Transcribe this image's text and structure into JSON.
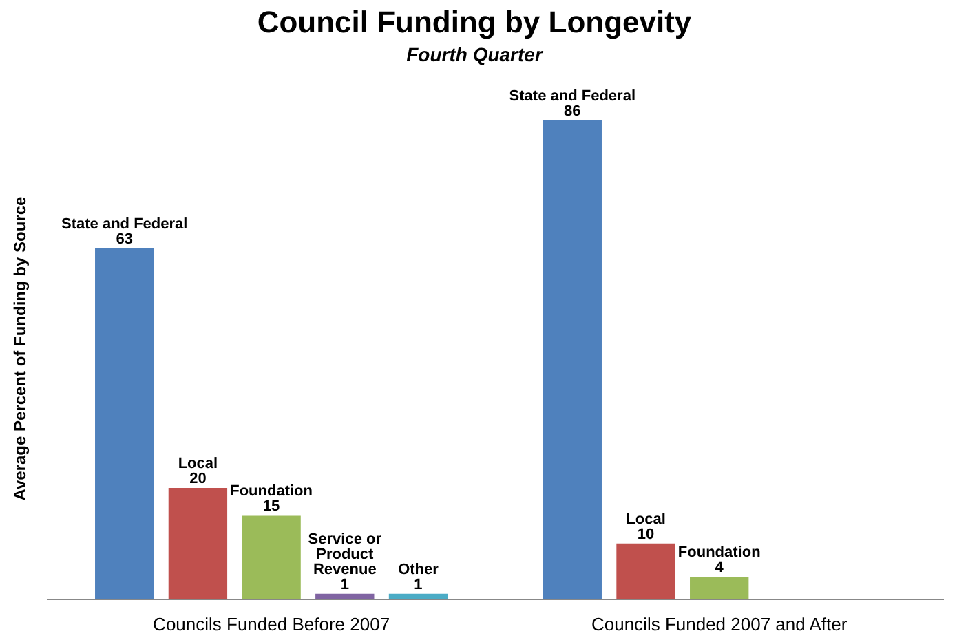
{
  "chart_data": {
    "type": "bar",
    "title": "Council Funding by Longevity",
    "subtitle": "Fourth Quarter",
    "ylabel": "Average Percent of Funding by Source",
    "categories": [
      "Councils Funded Before 2007",
      "Councils Funded 2007 and After"
    ],
    "series": [
      {
        "name": "State and Federal",
        "color": "#4f81bd",
        "values": [
          63,
          86
        ]
      },
      {
        "name": "Local",
        "color": "#c0504d",
        "values": [
          20,
          10
        ]
      },
      {
        "name": "Foundation",
        "color": "#9bbb59",
        "values": [
          15,
          4
        ]
      },
      {
        "name": "Service or Product Revenue",
        "color": "#8064a2",
        "values": [
          1,
          null
        ]
      },
      {
        "name": "Other",
        "color": "#4bacc6",
        "values": [
          1,
          null
        ]
      }
    ],
    "data_labels": true,
    "legend": false,
    "grid": false
  }
}
